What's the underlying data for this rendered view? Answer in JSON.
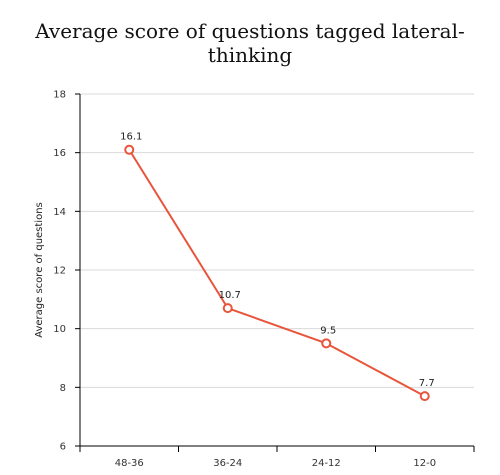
{
  "chart_data": {
    "type": "line",
    "title_lines": [
      "Average score of questions tagged lateral-",
      "thinking"
    ],
    "ylabel": "Average score of questions",
    "xlabel": "",
    "categories": [
      "48-36",
      "36-24",
      "24-12",
      "12-0"
    ],
    "values": [
      16.1,
      10.7,
      9.5,
      7.7
    ],
    "data_labels": [
      "16.1",
      "10.7",
      "9.5",
      "7.7"
    ],
    "ylim": [
      6,
      18
    ],
    "yticks": [
      "6",
      "8",
      "10",
      "12",
      "14",
      "16",
      "18"
    ],
    "grid": true,
    "line_color": "#e8553a"
  }
}
